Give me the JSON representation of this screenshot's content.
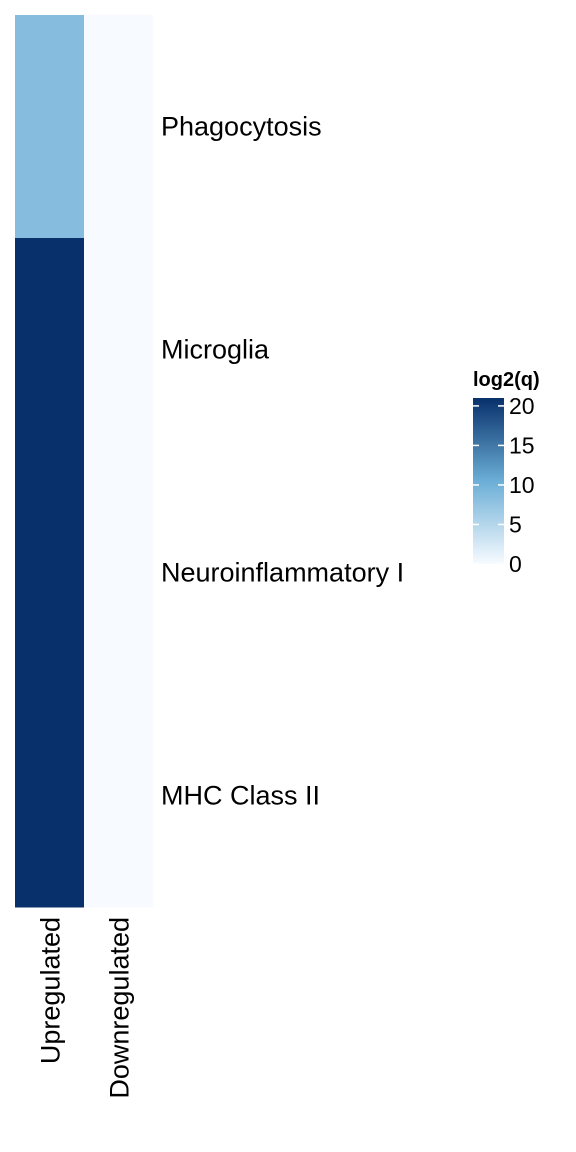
{
  "chart_data": {
    "type": "heatmap",
    "columns": [
      "Upregulated",
      "Downregulated"
    ],
    "rows": [
      "Phagocytosis",
      "Microglia",
      "Neuroinflammatory I",
      "MHC Class II"
    ],
    "values": [
      [
        8.5,
        0
      ],
      [
        21,
        0
      ],
      [
        21,
        0
      ],
      [
        21,
        0
      ]
    ],
    "legend": {
      "title": "log2(q)",
      "ticks": [
        0,
        5,
        10,
        15,
        20
      ],
      "range": [
        0,
        21
      ]
    },
    "colors": {
      "low": "#f7fbff",
      "mid": "#6baed6",
      "high": "#08306b"
    }
  }
}
